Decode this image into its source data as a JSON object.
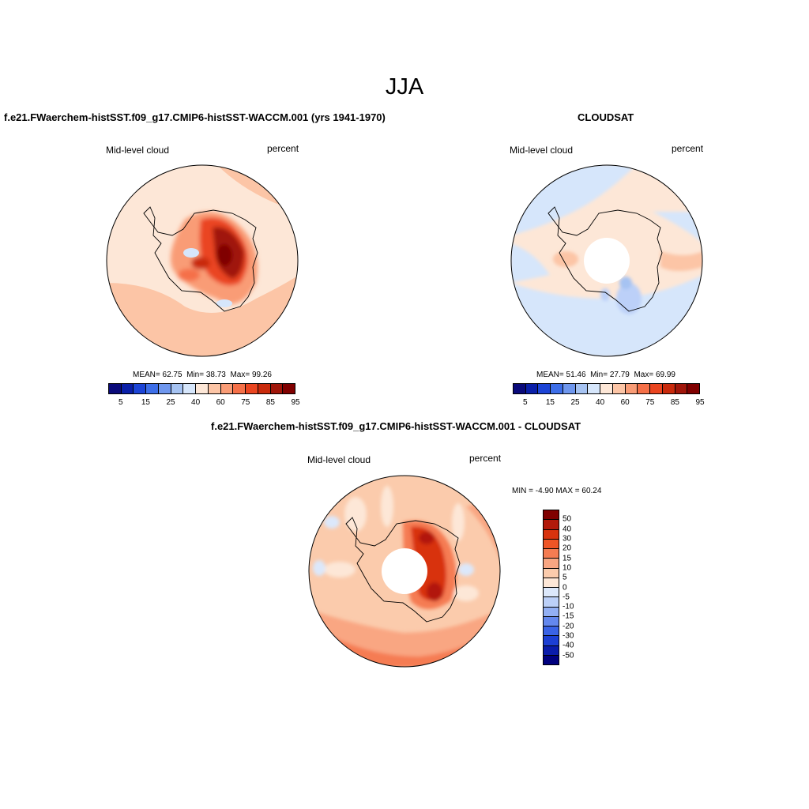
{
  "main_title": "JJA",
  "palette": [
    "#0a0a7a",
    "#0a1fa8",
    "#1c44d6",
    "#3d6ee8",
    "#6f97ee",
    "#a6c3f2",
    "#d6e6fb",
    "#fde7d7",
    "#fcc5a6",
    "#f99c76",
    "#f57048",
    "#ea4520",
    "#c92a0c",
    "#a0160a",
    "#800000"
  ],
  "diff_palette": [
    "#00007f",
    "#0a1cab",
    "#1c3fd4",
    "#3a63e6",
    "#6488ee",
    "#93b0f4",
    "#bcd0f8",
    "#dce8fb",
    "#fde7d7",
    "#fbcbac",
    "#f9a682",
    "#f57c52",
    "#ee5526",
    "#d8330e",
    "#b2190a",
    "#800000"
  ],
  "panels": {
    "model": {
      "title": "f.e21.FWaerchem-histSST.f09_g17.CMIP6-histSST-WACCM.001 (yrs 1941-1970)",
      "left_label": "Mid-level cloud",
      "right_label": "percent",
      "mean_label": "MEAN=",
      "mean": "62.75",
      "min_label": "Min=",
      "min": "38.73",
      "max_label": "Max=",
      "max": "99.26",
      "ticks": [
        "5",
        "15",
        "25",
        "40",
        "60",
        "75",
        "85",
        "95"
      ]
    },
    "obs": {
      "title": "CLOUDSAT",
      "left_label": "Mid-level cloud",
      "right_label": "percent",
      "mean_label": "MEAN=",
      "mean": "51.46",
      "min_label": "Min=",
      "min": "27.79",
      "max_label": "Max=",
      "max": "69.99",
      "ticks": [
        "5",
        "15",
        "25",
        "40",
        "60",
        "75",
        "85",
        "95"
      ]
    },
    "diff": {
      "title": "f.e21.FWaerchem-histSST.f09_g17.CMIP6-histSST-WACCM.001 - CLOUDSAT",
      "left_label": "Mid-level cloud",
      "right_label": "percent",
      "min_label": "MIN =",
      "min": "-4.90",
      "max_label": "MAX =",
      "max": "60.24",
      "ticks": [
        "50",
        "40",
        "30",
        "20",
        "15",
        "10",
        "5",
        "0",
        "-5",
        "-10",
        "-15",
        "-20",
        "-30",
        "-40",
        "-50"
      ]
    }
  },
  "chart_data": [
    {
      "type": "heatmap",
      "projection": "south-polar-stereographic",
      "title": "f.e21.FWaerchem-histSST.f09_g17.CMIP6-histSST-WACCM.001 (yrs 1941-1970)",
      "variable": "Mid-level cloud",
      "units": "percent",
      "season": "JJA",
      "mean": 62.75,
      "min": 38.73,
      "max": 99.26,
      "contour_levels": [
        5,
        10,
        15,
        20,
        25,
        30,
        40,
        50,
        60,
        70,
        75,
        80,
        85,
        90,
        95
      ]
    },
    {
      "type": "heatmap",
      "projection": "south-polar-stereographic",
      "title": "CLOUDSAT",
      "variable": "Mid-level cloud",
      "units": "percent",
      "season": "JJA",
      "mean": 51.46,
      "min": 27.79,
      "max": 69.99,
      "contour_levels": [
        5,
        10,
        15,
        20,
        25,
        30,
        40,
        50,
        60,
        70,
        75,
        80,
        85,
        90,
        95
      ]
    },
    {
      "type": "heatmap",
      "projection": "south-polar-stereographic",
      "title": "f.e21.FWaerchem-histSST.f09_g17.CMIP6-histSST-WACCM.001 - CLOUDSAT",
      "variable": "Mid-level cloud",
      "units": "percent",
      "season": "JJA",
      "min": -4.9,
      "max": 60.24,
      "contour_levels": [
        -50,
        -40,
        -30,
        -20,
        -15,
        -10,
        -5,
        0,
        5,
        10,
        15,
        20,
        30,
        40,
        50
      ]
    }
  ]
}
